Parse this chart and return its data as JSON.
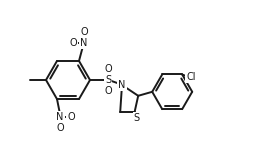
{
  "bg_color": "#ffffff",
  "line_color": "#1a1a1a",
  "line_width": 1.4,
  "font_size": 7.0,
  "fig_width": 2.55,
  "fig_height": 1.66,
  "dpi": 100,
  "xlim": [
    0,
    255
  ],
  "ylim": [
    0,
    166
  ]
}
